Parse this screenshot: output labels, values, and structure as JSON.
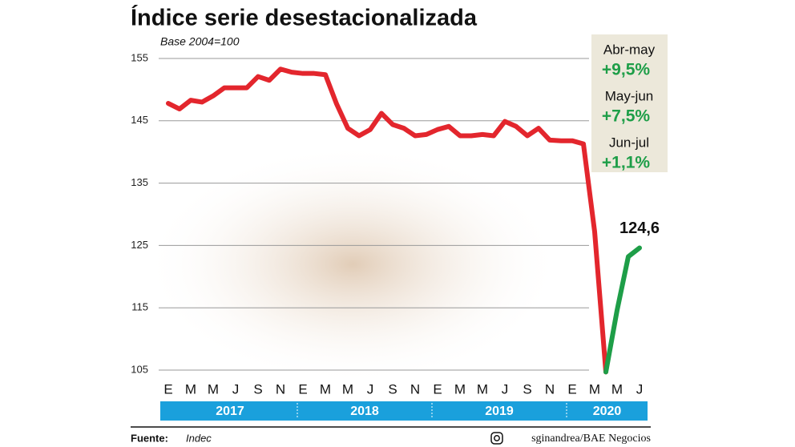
{
  "chart_data": {
    "type": "line",
    "title": "Índice serie desestacionalizada",
    "subtitle": "Base 2004=100",
    "categories": [
      "E",
      null,
      "M",
      null,
      "M",
      null,
      "J",
      null,
      "S",
      null,
      "N",
      null,
      "E",
      null,
      "M",
      null,
      "M",
      null,
      "J",
      null,
      "S",
      null,
      "N",
      null,
      "E",
      null,
      "M",
      null,
      "M",
      null,
      "J",
      null,
      "S",
      null,
      "N",
      null,
      "E",
      null,
      "M",
      null,
      "M",
      null,
      "J"
    ],
    "years": [
      "2017",
      "2018",
      "2019",
      "2020"
    ],
    "series": [
      {
        "color": "#e3262d",
        "values": [
          147.8,
          146.9,
          148.3,
          148.0,
          149.0,
          150.3,
          150.3,
          150.3,
          152.1,
          151.5,
          153.3,
          152.8,
          152.6,
          152.6,
          152.4,
          147.7,
          143.8,
          142.6,
          143.6,
          146.2,
          144.4,
          143.8,
          142.6,
          142.8,
          143.6,
          144.1,
          142.6,
          142.6,
          142.8,
          142.6,
          144.9,
          144.1,
          142.6,
          143.8,
          141.9,
          141.8,
          141.8,
          141.3,
          127.2,
          104.7,
          null,
          null,
          null
        ]
      },
      {
        "color": "#1e9e48",
        "values": [
          null,
          null,
          null,
          null,
          null,
          null,
          null,
          null,
          null,
          null,
          null,
          null,
          null,
          null,
          null,
          null,
          null,
          null,
          null,
          null,
          null,
          null,
          null,
          null,
          null,
          null,
          null,
          null,
          null,
          null,
          null,
          null,
          null,
          null,
          null,
          null,
          null,
          null,
          null,
          104.7,
          114.6,
          123.2,
          124.6
        ],
        "value_labels": [
          null,
          null,
          null,
          null,
          null,
          null,
          null,
          null,
          null,
          null,
          null,
          null,
          null,
          null,
          null,
          null,
          null,
          null,
          null,
          null,
          null,
          null,
          null,
          null,
          null,
          null,
          null,
          null,
          null,
          null,
          null,
          null,
          null,
          null,
          null,
          null,
          null,
          null,
          null,
          null,
          null,
          null,
          "124,6"
        ]
      }
    ],
    "ylim": [
      105,
      155
    ],
    "yticks": [
      105,
      115,
      125,
      135,
      145,
      155
    ],
    "grid": true,
    "changes": [
      {
        "period": "Abr-may",
        "change": "+9,5%"
      },
      {
        "period": "May-jun",
        "change": "+7,5%"
      },
      {
        "period": "Jun-jul",
        "change": "+1,1%"
      }
    ],
    "source_label": "Fuente:",
    "source": "Indec",
    "credit": "sginandrea/BAE Negocios"
  }
}
